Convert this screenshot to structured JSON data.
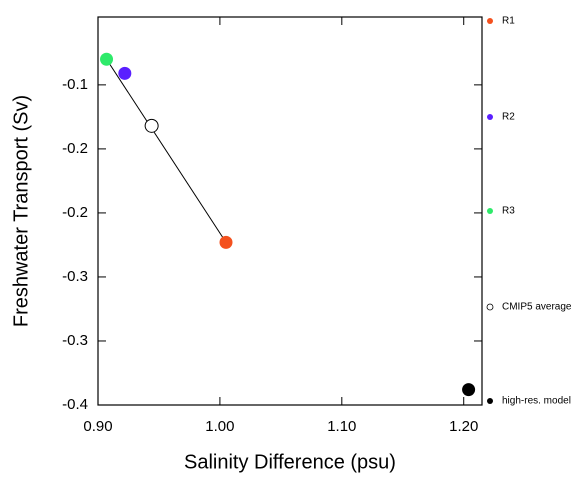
{
  "chart_data": {
    "type": "scatter",
    "x_label": "Salinity Difference (psu)",
    "y_label": "Freshwater Transport (Sv)",
    "xlim": [
      0.9,
      1.215
    ],
    "ylim": [
      -0.35,
      -0.047
    ],
    "xticks": [
      {
        "value": 0.9,
        "label": "0.90"
      },
      {
        "value": 1.0,
        "label": "1.00"
      },
      {
        "value": 1.1,
        "label": "1.10"
      },
      {
        "value": 1.2,
        "label": "1.20"
      }
    ],
    "yticks": [
      -0.1,
      {
        "value": -0.15,
        "label": "-0.2"
      },
      -0.2,
      {
        "value": -0.25,
        "label": "-0.3"
      },
      -0.3,
      {
        "value": -0.35,
        "label": "-0.4"
      }
    ],
    "trend_line": {
      "x": [
        0.907,
        1.005
      ],
      "values": [
        -0.08,
        -0.223
      ],
      "color": "#000000"
    },
    "series": [
      {
        "name": "R1",
        "color": "#f4511e",
        "marker": "filled",
        "x": [
          1.005
        ],
        "values": [
          -0.223
        ]
      },
      {
        "name": "R2",
        "color": "#5a1fff",
        "marker": "filled",
        "x": [
          0.922
        ],
        "values": [
          -0.091
        ]
      },
      {
        "name": "R3",
        "color": "#2eea6a",
        "marker": "filled",
        "x": [
          0.907
        ],
        "values": [
          -0.08
        ]
      },
      {
        "name": "CMIP5 average",
        "color": "#000000",
        "marker": "open",
        "x": [
          0.944
        ],
        "values": [
          -0.132
        ]
      },
      {
        "name": "high-res. model",
        "color": "#000000",
        "marker": "filled",
        "x": [
          1.204
        ],
        "values": [
          -0.338
        ]
      }
    ]
  }
}
